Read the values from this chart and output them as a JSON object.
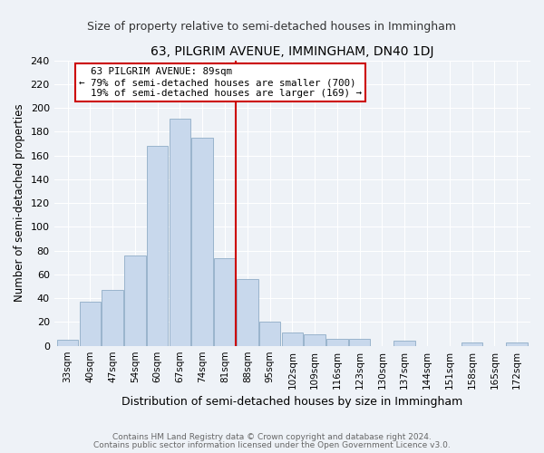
{
  "title": "63, PILGRIM AVENUE, IMMINGHAM, DN40 1DJ",
  "subtitle": "Size of property relative to semi-detached houses in Immingham",
  "xlabel": "Distribution of semi-detached houses by size in Immingham",
  "ylabel": "Number of semi-detached properties",
  "bar_labels": [
    "33sqm",
    "40sqm",
    "47sqm",
    "54sqm",
    "60sqm",
    "67sqm",
    "74sqm",
    "81sqm",
    "88sqm",
    "95sqm",
    "102sqm",
    "109sqm",
    "116sqm",
    "123sqm",
    "130sqm",
    "137sqm",
    "144sqm",
    "151sqm",
    "158sqm",
    "165sqm",
    "172sqm"
  ],
  "bar_values": [
    5,
    37,
    47,
    76,
    168,
    191,
    175,
    74,
    56,
    20,
    11,
    10,
    6,
    6,
    0,
    4,
    0,
    0,
    3,
    0,
    3
  ],
  "bar_color": "#c8d8ec",
  "bar_edge_color": "#9ab4cc",
  "property_line_label_idx": 8,
  "property_sqm": 89,
  "property_label": "63 PILGRIM AVENUE: 89sqm",
  "pct_smaller": 79,
  "num_smaller": 700,
  "pct_larger": 19,
  "num_larger": 169,
  "ylim": [
    0,
    240
  ],
  "yticks": [
    0,
    20,
    40,
    60,
    80,
    100,
    120,
    140,
    160,
    180,
    200,
    220,
    240
  ],
  "annotation_box_color": "#ffffff",
  "annotation_box_edge": "#cc0000",
  "line_color": "#cc0000",
  "footer1": "Contains HM Land Registry data © Crown copyright and database right 2024.",
  "footer2": "Contains public sector information licensed under the Open Government Licence v3.0.",
  "bg_color": "#eef2f7",
  "grid_color": "#ffffff",
  "title_fontsize": 10,
  "subtitle_fontsize": 9
}
